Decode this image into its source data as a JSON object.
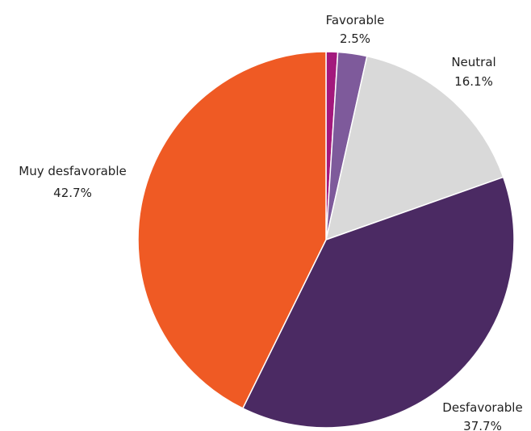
{
  "chart_data": {
    "type": "pie",
    "title": "",
    "start_angle_deg": 0,
    "direction": "clockwise",
    "slices": [
      {
        "label": "",
        "value": 1.0,
        "value_label": "",
        "color": "#A3197D"
      },
      {
        "label": "Favorable",
        "value": 2.5,
        "value_label": "2.5%",
        "color": "#7E5A9B"
      },
      {
        "label": "Neutral",
        "value": 16.1,
        "value_label": "16.1%",
        "color": "#D9D9D9"
      },
      {
        "label": "Desfavorable",
        "value": 37.7,
        "value_label": "37.7%",
        "color": "#4B2A63"
      },
      {
        "label": "Muy desfavorable",
        "value": 42.7,
        "value_label": "42.7%",
        "color": "#EF5A24"
      }
    ]
  }
}
